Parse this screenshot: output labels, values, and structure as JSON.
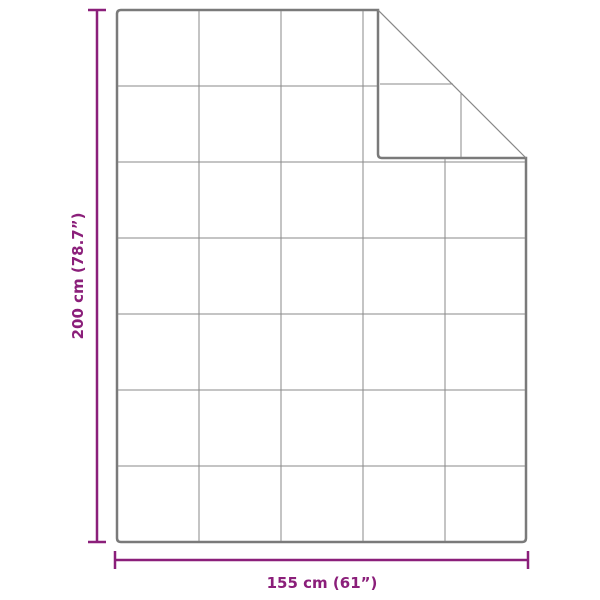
{
  "dimensions": {
    "height_label": "200 cm (78.7”)",
    "width_label": "155 cm (61”)"
  },
  "colors": {
    "dimension": "#8b1f7a",
    "outline": "#777777",
    "grid": "#8a8a8a"
  }
}
